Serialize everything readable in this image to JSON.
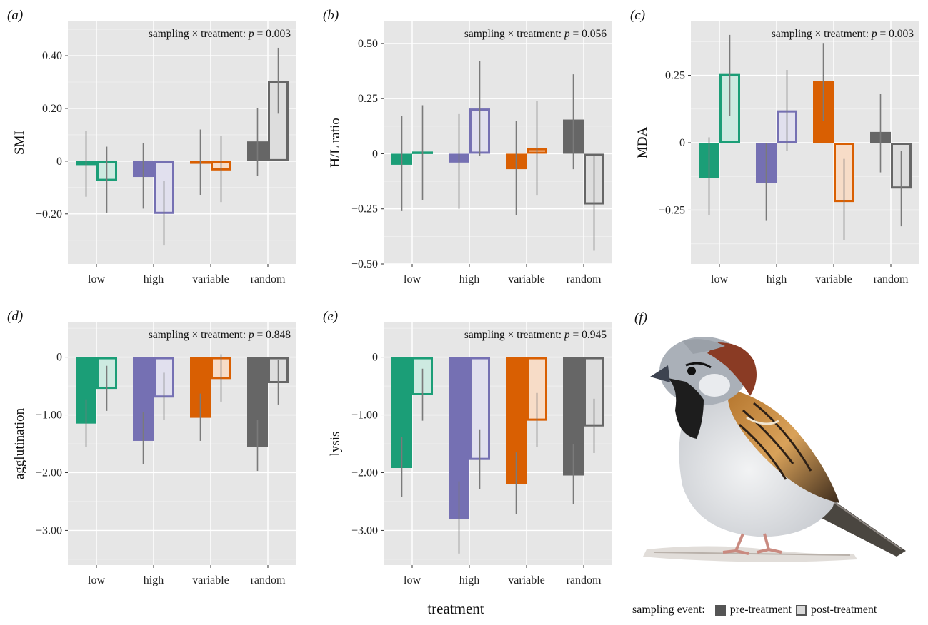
{
  "treatments": [
    "low",
    "high",
    "variable",
    "random"
  ],
  "treatment_colors": {
    "low": "#1b9e77",
    "high": "#7570b3",
    "variable": "#d95f02",
    "random": "#666666"
  },
  "x_axis_title": "treatment",
  "legend": {
    "title": "sampling event:",
    "items": [
      {
        "label": "pre-treatment",
        "style": "filled",
        "color": "#555555"
      },
      {
        "label": "post-treatment",
        "style": "outlined",
        "color": "#555555"
      }
    ]
  },
  "panel_f": {
    "label": "(f)",
    "content": "house-sparrow-illustration"
  },
  "chart_data": [
    {
      "panel": "(a)",
      "type": "bar",
      "ylabel": "SMI",
      "annotation": {
        "prefix": "sampling × treatment: ",
        "p": "p",
        "eq": " = 0.003"
      },
      "ylim": [
        -0.39,
        0.53
      ],
      "yticks": [
        0.4,
        0.2,
        0,
        -0.2
      ],
      "ytick_labels": [
        "0.40",
        "0.20",
        "0",
        "−0.20"
      ],
      "categories": [
        "low",
        "high",
        "variable",
        "random"
      ],
      "series": [
        {
          "name": "pre-treatment",
          "values": [
            -0.015,
            -0.06,
            -0.01,
            0.075
          ],
          "ci": [
            [
              -0.135,
              0.115
            ],
            [
              -0.18,
              0.07
            ],
            [
              -0.13,
              0.12
            ],
            [
              -0.055,
              0.2
            ]
          ]
        },
        {
          "name": "post-treatment",
          "values": [
            -0.075,
            -0.2,
            -0.035,
            0.305
          ],
          "ci": [
            [
              -0.195,
              0.055
            ],
            [
              -0.32,
              -0.075
            ],
            [
              -0.155,
              0.095
            ],
            [
              0.18,
              0.43
            ]
          ]
        }
      ]
    },
    {
      "panel": "(b)",
      "type": "bar",
      "ylabel": "H/L ratio",
      "annotation": {
        "prefix": "sampling × treatment: ",
        "p": "p",
        "eq": " = 0.056"
      },
      "ylim": [
        -0.5,
        0.6
      ],
      "yticks": [
        0.5,
        0.25,
        0,
        -0.25,
        -0.5
      ],
      "ytick_labels": [
        "0.50",
        "0.25",
        "0",
        "−0.25",
        "−0.50"
      ],
      "categories": [
        "low",
        "high",
        "variable",
        "random"
      ],
      "series": [
        {
          "name": "pre-treatment",
          "values": [
            -0.05,
            -0.04,
            -0.07,
            0.155
          ],
          "ci": [
            [
              -0.26,
              0.17
            ],
            [
              -0.25,
              0.18
            ],
            [
              -0.28,
              0.15
            ],
            [
              -0.07,
              0.36
            ]
          ]
        },
        {
          "name": "post-treatment",
          "values": [
            0.01,
            0.205,
            0.025,
            -0.23
          ],
          "ci": [
            [
              -0.21,
              0.22
            ],
            [
              -0.01,
              0.42
            ],
            [
              -0.19,
              0.24
            ],
            [
              -0.44,
              -0.01
            ]
          ]
        }
      ]
    },
    {
      "panel": "(c)",
      "type": "bar",
      "ylabel": "MDA",
      "annotation": {
        "prefix": "sampling × treatment: ",
        "p": "p",
        "eq": " = 0.003"
      },
      "ylim": [
        -0.45,
        0.45
      ],
      "yticks": [
        0.25,
        0,
        -0.25
      ],
      "ytick_labels": [
        "0.25",
        "0",
        "−0.25"
      ],
      "categories": [
        "low",
        "high",
        "variable",
        "random"
      ],
      "series": [
        {
          "name": "pre-treatment",
          "values": [
            -0.13,
            -0.15,
            0.23,
            0.04
          ],
          "ci": [
            [
              -0.27,
              0.02
            ],
            [
              -0.29,
              0.0
            ],
            [
              0.08,
              0.37
            ],
            [
              -0.11,
              0.18
            ]
          ]
        },
        {
          "name": "post-treatment",
          "values": [
            0.255,
            0.12,
            -0.22,
            -0.17
          ],
          "ci": [
            [
              0.1,
              0.4
            ],
            [
              -0.03,
              0.27
            ],
            [
              -0.36,
              -0.06
            ],
            [
              -0.31,
              -0.03
            ]
          ]
        }
      ]
    },
    {
      "panel": "(d)",
      "type": "bar",
      "ylabel": "agglutination",
      "annotation": {
        "prefix": "sampling × treatment: ",
        "p": "p",
        "eq": " = 0.848"
      },
      "ylim": [
        -3.6,
        0.6
      ],
      "yticks": [
        0,
        -1,
        -2,
        -3
      ],
      "ytick_labels": [
        "0",
        "−1.00",
        "−2.00",
        "−3.00"
      ],
      "categories": [
        "low",
        "high",
        "variable",
        "random"
      ],
      "series": [
        {
          "name": "pre-treatment",
          "values": [
            -1.15,
            -1.45,
            -1.05,
            -1.55
          ],
          "ci": [
            [
              -1.55,
              -0.73
            ],
            [
              -1.85,
              -0.95
            ],
            [
              -1.45,
              -0.63
            ],
            [
              -1.97,
              -1.08
            ]
          ]
        },
        {
          "name": "post-treatment",
          "values": [
            -0.55,
            -0.7,
            -0.38,
            -0.45
          ],
          "ci": [
            [
              -0.93,
              -0.15
            ],
            [
              -1.08,
              -0.27
            ],
            [
              -0.77,
              0.05
            ],
            [
              -0.82,
              -0.05
            ]
          ]
        }
      ]
    },
    {
      "panel": "(e)",
      "type": "bar",
      "ylabel": "lysis",
      "annotation": {
        "prefix": "sampling × treatment: ",
        "p": "p",
        "eq": " = 0.945"
      },
      "ylim": [
        -3.6,
        0.6
      ],
      "yticks": [
        0,
        -1,
        -2,
        -3
      ],
      "ytick_labels": [
        "0",
        "−1.00",
        "−2.00",
        "−3.00"
      ],
      "categories": [
        "low",
        "high",
        "variable",
        "random"
      ],
      "series": [
        {
          "name": "pre-treatment",
          "values": [
            -1.92,
            -2.8,
            -2.2,
            -2.05
          ],
          "ci": [
            [
              -2.42,
              -1.38
            ],
            [
              -3.4,
              -2.15
            ],
            [
              -2.72,
              -1.65
            ],
            [
              -2.55,
              -1.5
            ]
          ]
        },
        {
          "name": "post-treatment",
          "values": [
            -0.66,
            -1.78,
            -1.1,
            -1.2
          ],
          "ci": [
            [
              -1.1,
              -0.2
            ],
            [
              -2.28,
              -1.25
            ],
            [
              -1.55,
              -0.62
            ],
            [
              -1.66,
              -0.72
            ]
          ]
        }
      ]
    }
  ]
}
